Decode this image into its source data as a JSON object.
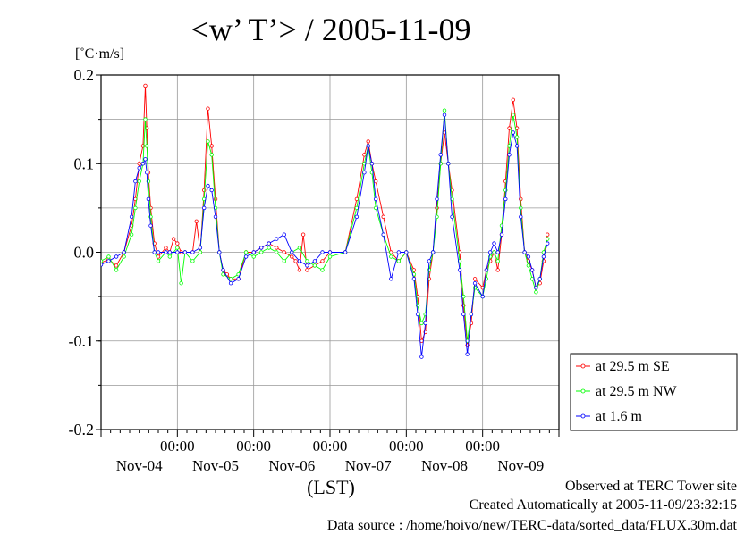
{
  "title": "<w’ T’> / 2005-11-09",
  "unit_label": "[˚C·m/s]",
  "footer": {
    "observed": "Observed at TERC Tower site",
    "created": "Created Automatically at 2005-11-09/23:32:15",
    "source": "Data source : /home/hoivo/new/TERC-data/sorted_data/FLUX.30m.dat"
  },
  "chart_data": {
    "type": "line",
    "title": "<w’ T’> / 2005-11-09",
    "ylabel": "[˚C·m/s]",
    "xlabel": "(LST)",
    "ylim": [
      -0.2,
      0.2
    ],
    "xlim_days": [
      "Nov-04",
      "Nov-10"
    ],
    "y_ticks": [
      "0.2",
      "0.1",
      "0.0",
      "-0.1",
      "-0.2"
    ],
    "y_tick_values": [
      0.2,
      0.1,
      0.0,
      -0.1,
      -0.2
    ],
    "x_time_labels": [
      "00:00",
      "00:00",
      "00:00",
      "00:00",
      "00:00"
    ],
    "x_day_labels": [
      "Nov-04",
      "Nov-05",
      "Nov-06",
      "Nov-07",
      "Nov-08",
      "Nov-09"
    ],
    "grid": true,
    "legend_position": "right",
    "series": [
      {
        "name": "at 29.5 m SE",
        "color": "#ff0000",
        "points": [
          [
            0.0,
            -0.012
          ],
          [
            0.1,
            -0.008
          ],
          [
            0.2,
            -0.015
          ],
          [
            0.3,
            0.0
          ],
          [
            0.4,
            0.03
          ],
          [
            0.45,
            0.06
          ],
          [
            0.5,
            0.1
          ],
          [
            0.55,
            0.12
          ],
          [
            0.58,
            0.188
          ],
          [
            0.6,
            0.14
          ],
          [
            0.62,
            0.09
          ],
          [
            0.65,
            0.05
          ],
          [
            0.7,
            0.01
          ],
          [
            0.75,
            -0.005
          ],
          [
            0.85,
            0.005
          ],
          [
            0.9,
            0.0
          ],
          [
            0.95,
            0.015
          ],
          [
            1.0,
            0.01
          ],
          [
            1.05,
            0.0
          ],
          [
            1.1,
            0.0
          ],
          [
            1.2,
            0.0
          ],
          [
            1.25,
            0.035
          ],
          [
            1.3,
            0.0
          ],
          [
            1.35,
            0.07
          ],
          [
            1.4,
            0.162
          ],
          [
            1.45,
            0.12
          ],
          [
            1.5,
            0.06
          ],
          [
            1.55,
            0.0
          ],
          [
            1.6,
            -0.02
          ],
          [
            1.65,
            -0.025
          ],
          [
            1.7,
            -0.03
          ],
          [
            1.8,
            -0.03
          ],
          [
            1.9,
            0.0
          ],
          [
            2.0,
            0.0
          ],
          [
            2.1,
            0.005
          ],
          [
            2.2,
            0.01
          ],
          [
            2.3,
            0.005
          ],
          [
            2.4,
            0.0
          ],
          [
            2.5,
            -0.005
          ],
          [
            2.55,
            -0.01
          ],
          [
            2.6,
            -0.02
          ],
          [
            2.65,
            0.02
          ],
          [
            2.7,
            -0.02
          ],
          [
            2.8,
            -0.015
          ],
          [
            2.9,
            -0.01
          ],
          [
            3.0,
            0.0
          ],
          [
            3.2,
            0.0
          ],
          [
            3.35,
            0.06
          ],
          [
            3.45,
            0.11
          ],
          [
            3.5,
            0.125
          ],
          [
            3.55,
            0.1
          ],
          [
            3.6,
            0.08
          ],
          [
            3.7,
            0.04
          ],
          [
            3.8,
            0.0
          ],
          [
            3.9,
            -0.01
          ],
          [
            4.0,
            0.0
          ],
          [
            4.1,
            -0.02
          ],
          [
            4.15,
            -0.05
          ],
          [
            4.2,
            -0.1
          ],
          [
            4.25,
            -0.09
          ],
          [
            4.3,
            -0.03
          ],
          [
            4.35,
            0.0
          ],
          [
            4.4,
            0.05
          ],
          [
            4.45,
            0.1
          ],
          [
            4.5,
            0.135
          ],
          [
            4.55,
            0.1
          ],
          [
            4.6,
            0.07
          ],
          [
            4.7,
            0.0
          ],
          [
            4.75,
            -0.06
          ],
          [
            4.8,
            -0.105
          ],
          [
            4.85,
            -0.08
          ],
          [
            4.9,
            -0.03
          ],
          [
            5.0,
            -0.04
          ],
          [
            5.05,
            -0.02
          ],
          [
            5.1,
            -0.01
          ],
          [
            5.15,
            0.0
          ],
          [
            5.2,
            -0.02
          ],
          [
            5.25,
            0.02
          ],
          [
            5.3,
            0.08
          ],
          [
            5.35,
            0.14
          ],
          [
            5.4,
            0.172
          ],
          [
            5.45,
            0.14
          ],
          [
            5.5,
            0.06
          ],
          [
            5.55,
            0.0
          ],
          [
            5.6,
            -0.01
          ],
          [
            5.65,
            -0.02
          ],
          [
            5.7,
            -0.04
          ],
          [
            5.75,
            -0.035
          ],
          [
            5.8,
            -0.01
          ],
          [
            5.85,
            0.02
          ]
        ]
      },
      {
        "name": "at 29.5 m NW",
        "color": "#00ff00",
        "points": [
          [
            0.0,
            -0.01
          ],
          [
            0.1,
            -0.005
          ],
          [
            0.2,
            -0.02
          ],
          [
            0.3,
            -0.005
          ],
          [
            0.4,
            0.02
          ],
          [
            0.45,
            0.05
          ],
          [
            0.5,
            0.08
          ],
          [
            0.55,
            0.1
          ],
          [
            0.58,
            0.15
          ],
          [
            0.6,
            0.12
          ],
          [
            0.62,
            0.08
          ],
          [
            0.65,
            0.04
          ],
          [
            0.7,
            0.0
          ],
          [
            0.75,
            -0.01
          ],
          [
            0.85,
            0.0
          ],
          [
            0.9,
            -0.005
          ],
          [
            1.0,
            0.005
          ],
          [
            1.05,
            -0.035
          ],
          [
            1.1,
            0.0
          ],
          [
            1.2,
            -0.01
          ],
          [
            1.3,
            0.0
          ],
          [
            1.35,
            0.06
          ],
          [
            1.4,
            0.125
          ],
          [
            1.45,
            0.11
          ],
          [
            1.5,
            0.05
          ],
          [
            1.55,
            0.0
          ],
          [
            1.6,
            -0.025
          ],
          [
            1.7,
            -0.03
          ],
          [
            1.8,
            -0.025
          ],
          [
            1.9,
            0.0
          ],
          [
            2.0,
            -0.005
          ],
          [
            2.1,
            0.0
          ],
          [
            2.2,
            0.005
          ],
          [
            2.3,
            0.0
          ],
          [
            2.4,
            -0.01
          ],
          [
            2.5,
            0.0
          ],
          [
            2.6,
            0.005
          ],
          [
            2.7,
            -0.01
          ],
          [
            2.8,
            -0.015
          ],
          [
            2.9,
            -0.02
          ],
          [
            3.0,
            -0.005
          ],
          [
            3.2,
            0.0
          ],
          [
            3.35,
            0.05
          ],
          [
            3.45,
            0.1
          ],
          [
            3.5,
            0.12
          ],
          [
            3.55,
            0.09
          ],
          [
            3.6,
            0.05
          ],
          [
            3.7,
            0.02
          ],
          [
            3.8,
            -0.005
          ],
          [
            3.9,
            -0.01
          ],
          [
            4.0,
            0.0
          ],
          [
            4.1,
            -0.025
          ],
          [
            4.15,
            -0.06
          ],
          [
            4.2,
            -0.08
          ],
          [
            4.25,
            -0.07
          ],
          [
            4.3,
            -0.02
          ],
          [
            4.35,
            0.0
          ],
          [
            4.4,
            0.04
          ],
          [
            4.45,
            0.1
          ],
          [
            4.5,
            0.16
          ],
          [
            4.55,
            0.1
          ],
          [
            4.6,
            0.06
          ],
          [
            4.7,
            -0.01
          ],
          [
            4.75,
            -0.05
          ],
          [
            4.8,
            -0.1
          ],
          [
            4.85,
            -0.07
          ],
          [
            4.9,
            -0.04
          ],
          [
            5.0,
            -0.05
          ],
          [
            5.05,
            -0.03
          ],
          [
            5.1,
            -0.005
          ],
          [
            5.15,
            0.0
          ],
          [
            5.2,
            -0.01
          ],
          [
            5.25,
            0.03
          ],
          [
            5.3,
            0.07
          ],
          [
            5.35,
            0.12
          ],
          [
            5.4,
            0.155
          ],
          [
            5.45,
            0.13
          ],
          [
            5.5,
            0.05
          ],
          [
            5.55,
            0.0
          ],
          [
            5.6,
            -0.015
          ],
          [
            5.65,
            -0.03
          ],
          [
            5.7,
            -0.045
          ],
          [
            5.75,
            -0.03
          ],
          [
            5.8,
            0.0
          ],
          [
            5.85,
            0.015
          ]
        ]
      },
      {
        "name": "at 1.6 m",
        "color": "#0000ff",
        "points": [
          [
            0.0,
            -0.014
          ],
          [
            0.1,
            -0.01
          ],
          [
            0.2,
            -0.005
          ],
          [
            0.3,
            0.0
          ],
          [
            0.4,
            0.04
          ],
          [
            0.45,
            0.08
          ],
          [
            0.5,
            0.095
          ],
          [
            0.55,
            0.1
          ],
          [
            0.58,
            0.105
          ],
          [
            0.6,
            0.09
          ],
          [
            0.62,
            0.06
          ],
          [
            0.65,
            0.03
          ],
          [
            0.7,
            0.0
          ],
          [
            0.75,
            0.0
          ],
          [
            0.85,
            0.0
          ],
          [
            0.9,
            0.0
          ],
          [
            1.0,
            0.0
          ],
          [
            1.1,
            0.0
          ],
          [
            1.2,
            0.0
          ],
          [
            1.3,
            0.005
          ],
          [
            1.35,
            0.05
          ],
          [
            1.4,
            0.075
          ],
          [
            1.45,
            0.07
          ],
          [
            1.5,
            0.04
          ],
          [
            1.55,
            0.0
          ],
          [
            1.6,
            -0.02
          ],
          [
            1.7,
            -0.035
          ],
          [
            1.8,
            -0.03
          ],
          [
            1.9,
            -0.005
          ],
          [
            2.0,
            0.0
          ],
          [
            2.1,
            0.005
          ],
          [
            2.2,
            0.01
          ],
          [
            2.3,
            0.015
          ],
          [
            2.4,
            0.02
          ],
          [
            2.5,
            0.0
          ],
          [
            2.6,
            -0.01
          ],
          [
            2.7,
            -0.015
          ],
          [
            2.8,
            -0.01
          ],
          [
            2.9,
            0.0
          ],
          [
            3.0,
            0.0
          ],
          [
            3.2,
            0.0
          ],
          [
            3.35,
            0.04
          ],
          [
            3.45,
            0.09
          ],
          [
            3.5,
            0.12
          ],
          [
            3.55,
            0.1
          ],
          [
            3.6,
            0.06
          ],
          [
            3.7,
            0.02
          ],
          [
            3.8,
            -0.03
          ],
          [
            3.9,
            0.0
          ],
          [
            4.0,
            0.0
          ],
          [
            4.1,
            -0.03
          ],
          [
            4.15,
            -0.07
          ],
          [
            4.2,
            -0.118
          ],
          [
            4.25,
            -0.08
          ],
          [
            4.3,
            -0.01
          ],
          [
            4.35,
            0.0
          ],
          [
            4.4,
            0.06
          ],
          [
            4.45,
            0.11
          ],
          [
            4.5,
            0.155
          ],
          [
            4.55,
            0.1
          ],
          [
            4.6,
            0.04
          ],
          [
            4.7,
            -0.02
          ],
          [
            4.75,
            -0.07
          ],
          [
            4.8,
            -0.115
          ],
          [
            4.85,
            -0.07
          ],
          [
            4.9,
            -0.035
          ],
          [
            5.0,
            -0.05
          ],
          [
            5.05,
            -0.02
          ],
          [
            5.1,
            0.0
          ],
          [
            5.15,
            0.01
          ],
          [
            5.2,
            0.0
          ],
          [
            5.25,
            0.02
          ],
          [
            5.3,
            0.06
          ],
          [
            5.35,
            0.11
          ],
          [
            5.4,
            0.135
          ],
          [
            5.45,
            0.12
          ],
          [
            5.5,
            0.04
          ],
          [
            5.55,
            0.0
          ],
          [
            5.6,
            -0.005
          ],
          [
            5.65,
            -0.02
          ],
          [
            5.7,
            -0.04
          ],
          [
            5.75,
            -0.03
          ],
          [
            5.8,
            -0.005
          ],
          [
            5.85,
            0.01
          ]
        ]
      }
    ]
  }
}
